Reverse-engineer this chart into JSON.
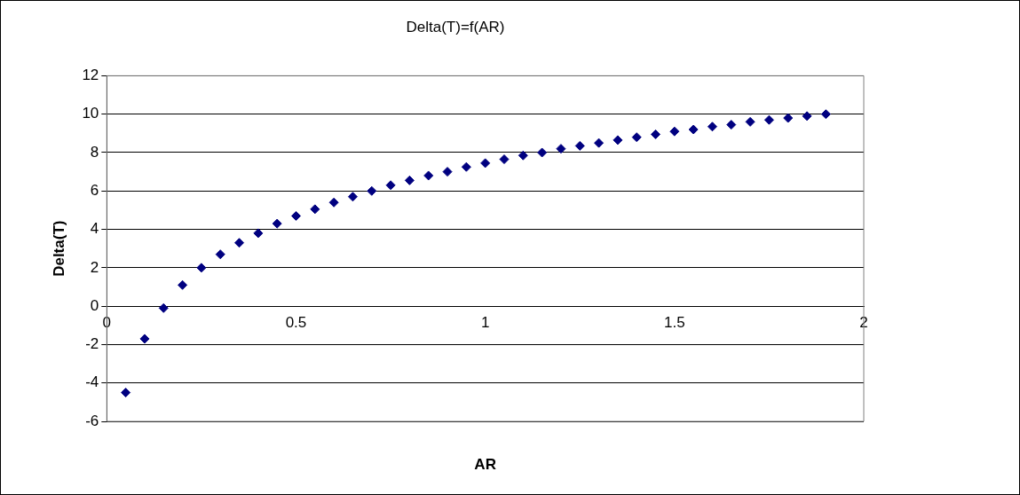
{
  "chart_data": {
    "type": "scatter",
    "title": "Delta(T)=f(AR)",
    "xlabel": "AR",
    "ylabel": "Delta(T)",
    "x": [
      0.05,
      0.1,
      0.15,
      0.2,
      0.25,
      0.3,
      0.35,
      0.4,
      0.45,
      0.5,
      0.55,
      0.6,
      0.65,
      0.7,
      0.75,
      0.8,
      0.85,
      0.9,
      0.95,
      1.0,
      1.05,
      1.1,
      1.15,
      1.2,
      1.25,
      1.3,
      1.35,
      1.4,
      1.45,
      1.5,
      1.55,
      1.6,
      1.65,
      1.7,
      1.75,
      1.8,
      1.85,
      1.9
    ],
    "series": [
      {
        "color": "#000080",
        "values": [
          -4.5,
          -1.7,
          -0.1,
          1.1,
          2.0,
          2.7,
          3.3,
          3.8,
          4.3,
          4.7,
          5.05,
          5.4,
          5.7,
          6.0,
          6.3,
          6.55,
          6.8,
          7.0,
          7.25,
          7.45,
          7.65,
          7.85,
          8.0,
          8.2,
          8.35,
          8.5,
          8.65,
          8.8,
          8.95,
          9.1,
          9.2,
          9.35,
          9.45,
          9.6,
          9.7,
          9.8,
          9.9,
          10.0
        ]
      }
    ],
    "xlim": [
      0,
      2
    ],
    "xticks": [
      0,
      0.5,
      1,
      1.5,
      2
    ],
    "ylim": [
      -6,
      12
    ],
    "yticks": [
      -6,
      -4,
      -2,
      0,
      2,
      4,
      6,
      8,
      10,
      12
    ],
    "grid": "y",
    "legend": false,
    "marker": "diamond"
  }
}
